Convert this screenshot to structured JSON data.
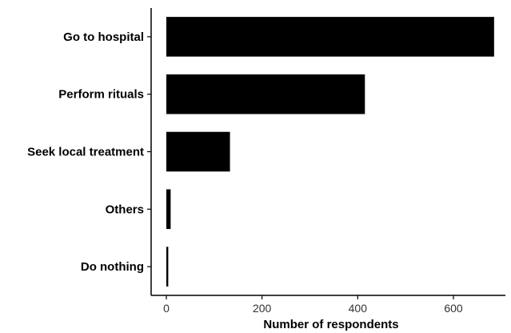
{
  "chart_data": {
    "type": "bar",
    "orientation": "horizontal",
    "categories": [
      "Go to hospital",
      "Perform rituals",
      "Seek local treatment",
      "Others",
      "Do nothing"
    ],
    "values": [
      685,
      415,
      133,
      9,
      4
    ],
    "xlabel": "Number of respondents",
    "ylabel": "",
    "xlim": [
      -30,
      700
    ],
    "xticks": [
      0,
      200,
      400,
      600
    ],
    "grid": false,
    "bar_color": "#000000"
  }
}
